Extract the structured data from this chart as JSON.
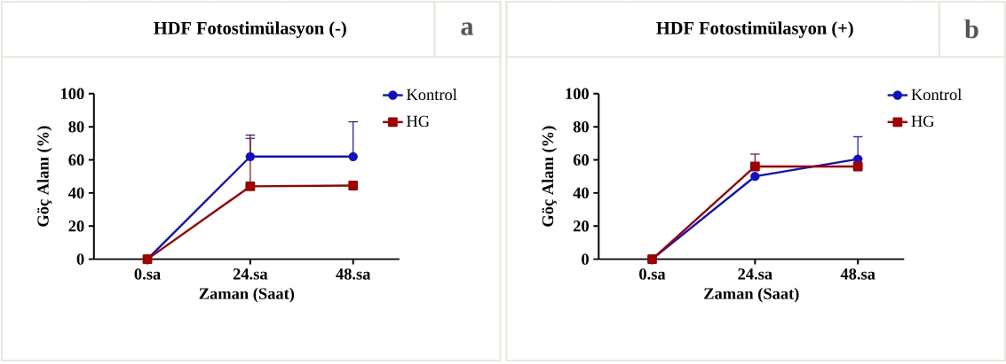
{
  "chart_data": [
    {
      "type": "line",
      "title": "HDF Fotostimülasyon (-)",
      "annotations": [
        "a"
      ],
      "xlabel": "Zaman (Saat)",
      "ylabel": "Göç Alanı (%)",
      "categories": [
        "0.sa",
        "24.sa",
        "48.sa"
      ],
      "ylim": [
        0,
        100
      ],
      "yticks": [
        0,
        20,
        40,
        60,
        80,
        100
      ],
      "legend": "top right",
      "grid": false,
      "series": [
        {
          "name": "Kontrol",
          "color": "#1010c8",
          "marker": "circle",
          "values": [
            0,
            62,
            62
          ],
          "errors": [
            null,
            [
              62,
              75
            ],
            [
              62,
              83
            ]
          ]
        },
        {
          "name": "HG",
          "color": "#a00000",
          "marker": "square",
          "values": [
            0,
            44,
            44.5
          ],
          "errors": [
            null,
            [
              44,
              73
            ],
            null
          ]
        }
      ]
    },
    {
      "type": "line",
      "title": "HDF Fotostimülasyon (+)",
      "annotations": [
        "b"
      ],
      "xlabel": "Zaman (Saat)",
      "ylabel": "Göç Alanı (%)",
      "categories": [
        "0.sa",
        "24.sa",
        "48.sa"
      ],
      "ylim": [
        0,
        100
      ],
      "yticks": [
        0,
        20,
        40,
        60,
        80,
        100
      ],
      "legend": "top right",
      "grid": false,
      "series": [
        {
          "name": "Kontrol",
          "color": "#1010c8",
          "marker": "circle",
          "values": [
            0,
            50,
            60.5
          ],
          "errors": [
            null,
            null,
            [
              60.5,
              74
            ]
          ]
        },
        {
          "name": "HG",
          "color": "#a00000",
          "marker": "square",
          "values": [
            0,
            56,
            56
          ],
          "errors": [
            null,
            [
              56,
              63.5
            ],
            null
          ]
        }
      ]
    }
  ]
}
